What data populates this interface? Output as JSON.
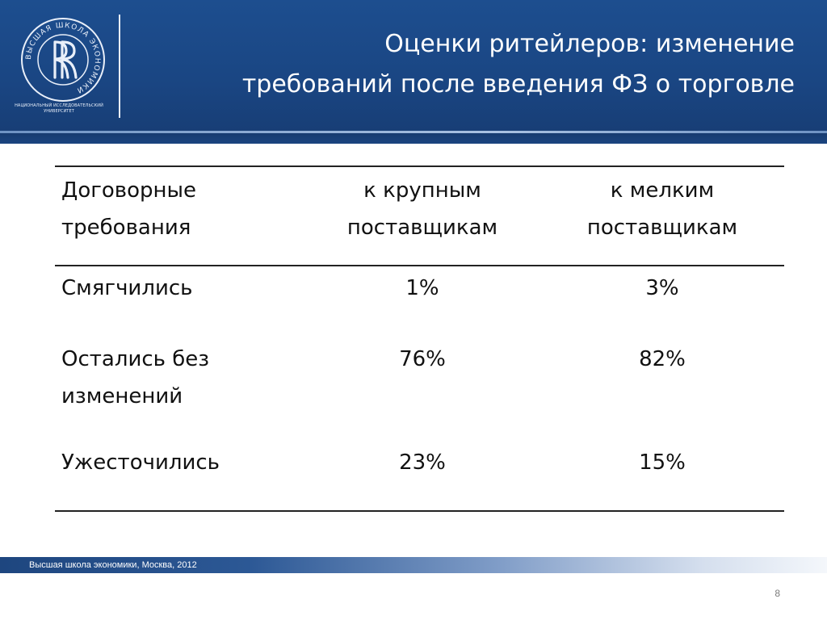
{
  "header": {
    "title_line1": "Оценки ритейлеров: изменение",
    "title_line2": "требований после введения ФЗ о торговле",
    "logo_caption_line1": "Национальный исследовательский",
    "logo_caption_line2": "университет",
    "logo_ring_text": "ВЫСШАЯ ШКОЛА ЭКОНОМИКИ",
    "colors": {
      "band": "#1a4683",
      "accent_line": "#a9c1e2",
      "text": "#ffffff"
    }
  },
  "table": {
    "columns": [
      {
        "line1": "Договорные",
        "line2": "требования"
      },
      {
        "line1": "к крупным",
        "line2": "поставщикам"
      },
      {
        "line1": "к мелким",
        "line2": "поставщикам"
      }
    ],
    "rows": [
      {
        "label_line1": "Смягчились",
        "label_line2": "",
        "large": "1%",
        "small": "3%"
      },
      {
        "label_line1": "Остались без",
        "label_line2": "изменений",
        "large": "76%",
        "small": "82%"
      },
      {
        "label_line1": "Ужесточились",
        "label_line2": "",
        "large": "23%",
        "small": "15%"
      }
    ]
  },
  "footer": {
    "text": "Высшая школа экономики, Москва, 2012",
    "page_number": "8"
  }
}
